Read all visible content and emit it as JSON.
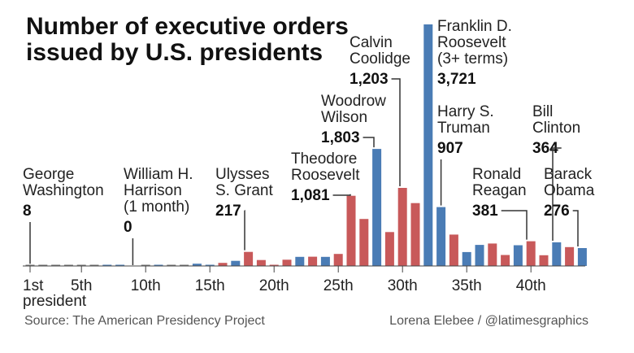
{
  "chart_data": {
    "type": "bar",
    "title_lines": [
      "Number of executive orders",
      "issued by U.S. presidents"
    ],
    "xlabel": "",
    "ylabel": "",
    "ylim": [
      0,
      3721
    ],
    "x_ticks": [
      "1st",
      "5th",
      "10th",
      "15th",
      "20th",
      "25th",
      "30th",
      "35th",
      "40th"
    ],
    "x_tick_sub": "president",
    "colors": {
      "republican": "#c8595a",
      "democrat": "#4a7cb5",
      "other": "#777777",
      "axis": "#444444"
    },
    "presidents": [
      {
        "n": 1,
        "value": 8,
        "party": "other"
      },
      {
        "n": 2,
        "value": 1,
        "party": "other"
      },
      {
        "n": 3,
        "value": 4,
        "party": "other"
      },
      {
        "n": 4,
        "value": 1,
        "party": "other"
      },
      {
        "n": 5,
        "value": 1,
        "party": "other"
      },
      {
        "n": 6,
        "value": 3,
        "party": "other"
      },
      {
        "n": 7,
        "value": 12,
        "party": "democrat"
      },
      {
        "n": 8,
        "value": 1,
        "party": "democrat"
      },
      {
        "n": 9,
        "value": 0,
        "party": "other"
      },
      {
        "n": 10,
        "value": 17,
        "party": "other"
      },
      {
        "n": 11,
        "value": 18,
        "party": "democrat"
      },
      {
        "n": 12,
        "value": 5,
        "party": "other"
      },
      {
        "n": 13,
        "value": 12,
        "party": "other"
      },
      {
        "n": 14,
        "value": 35,
        "party": "democrat"
      },
      {
        "n": 15,
        "value": 8,
        "party": "democrat"
      },
      {
        "n": 16,
        "value": 48,
        "party": "republican"
      },
      {
        "n": 17,
        "value": 79,
        "party": "democrat"
      },
      {
        "n": 18,
        "value": 217,
        "party": "republican"
      },
      {
        "n": 19,
        "value": 92,
        "party": "republican"
      },
      {
        "n": 20,
        "value": 16,
        "party": "republican"
      },
      {
        "n": 21,
        "value": 96,
        "party": "republican"
      },
      {
        "n": 22,
        "value": 140,
        "party": "democrat"
      },
      {
        "n": 23,
        "value": 143,
        "party": "republican"
      },
      {
        "n": 24,
        "value": 140,
        "party": "democrat"
      },
      {
        "n": 25,
        "value": 185,
        "party": "republican"
      },
      {
        "n": 26,
        "value": 1081,
        "party": "republican"
      },
      {
        "n": 27,
        "value": 724,
        "party": "republican"
      },
      {
        "n": 28,
        "value": 1803,
        "party": "democrat"
      },
      {
        "n": 29,
        "value": 522,
        "party": "republican"
      },
      {
        "n": 30,
        "value": 1203,
        "party": "republican"
      },
      {
        "n": 31,
        "value": 968,
        "party": "republican"
      },
      {
        "n": 32,
        "value": 3721,
        "party": "democrat"
      },
      {
        "n": 33,
        "value": 907,
        "party": "democrat"
      },
      {
        "n": 34,
        "value": 484,
        "party": "republican"
      },
      {
        "n": 35,
        "value": 214,
        "party": "democrat"
      },
      {
        "n": 36,
        "value": 325,
        "party": "democrat"
      },
      {
        "n": 37,
        "value": 346,
        "party": "republican"
      },
      {
        "n": 38,
        "value": 169,
        "party": "republican"
      },
      {
        "n": 39,
        "value": 320,
        "party": "democrat"
      },
      {
        "n": 40,
        "value": 381,
        "party": "republican"
      },
      {
        "n": 41,
        "value": 166,
        "party": "republican"
      },
      {
        "n": 42,
        "value": 364,
        "party": "democrat"
      },
      {
        "n": 43,
        "value": 291,
        "party": "republican"
      },
      {
        "n": 44,
        "value": 276,
        "party": "democrat"
      }
    ],
    "annotations": [
      {
        "president": 1,
        "name_lines": [
          "George",
          "Washington"
        ],
        "value_label": "8"
      },
      {
        "president": 9,
        "name_lines": [
          "William H.",
          "Harrison",
          "(1 month)"
        ],
        "value_label": "0"
      },
      {
        "president": 18,
        "name_lines": [
          "Ulysses",
          "S. Grant"
        ],
        "value_label": "217"
      },
      {
        "president": 26,
        "name_lines": [
          "Theodore",
          "Roosevelt"
        ],
        "value_label": "1,081"
      },
      {
        "president": 28,
        "name_lines": [
          "Woodrow",
          "Wilson"
        ],
        "value_label": "1,803"
      },
      {
        "president": 30,
        "name_lines": [
          "Calvin",
          "Coolidge"
        ],
        "value_label": "1,203"
      },
      {
        "president": 32,
        "name_lines": [
          "Franklin D.",
          "Roosevelt",
          "(3+ terms)"
        ],
        "value_label": "3,721"
      },
      {
        "president": 33,
        "name_lines": [
          "Harry S.",
          "Truman"
        ],
        "value_label": "907"
      },
      {
        "president": 40,
        "name_lines": [
          "Ronald",
          "Reagan"
        ],
        "value_label": "381"
      },
      {
        "president": 42,
        "name_lines": [
          "Bill",
          "Clinton"
        ],
        "value_label": "364"
      },
      {
        "president": 44,
        "name_lines": [
          "Barack",
          "Obama"
        ],
        "value_label": "276"
      }
    ]
  },
  "footer": {
    "source": "Source: The American Presidency Project",
    "credit": "Lorena Elebee / @latimesgraphics"
  }
}
